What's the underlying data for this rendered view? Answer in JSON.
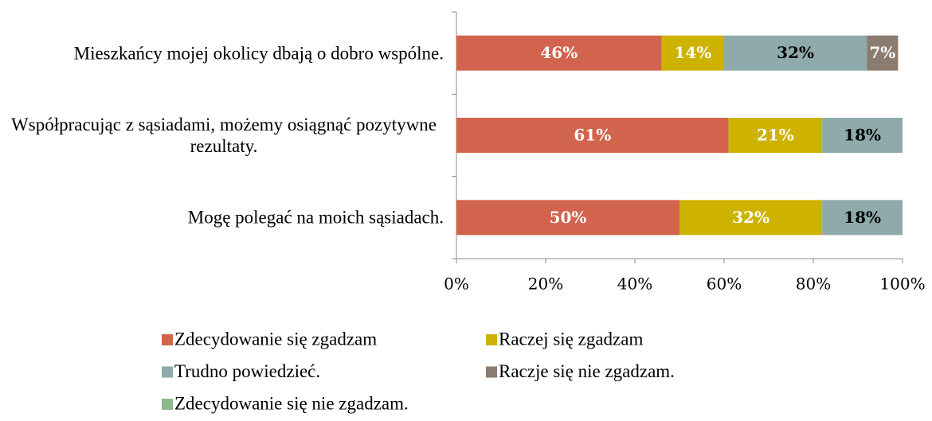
{
  "chart_data": {
    "type": "stacked-bar-horizontal",
    "categories": [
      "Mieszkańcy mojej okolicy dbają o dobro wspólne.",
      "Współpracując z sąsiadami, możemy osiągnąć pozytywne rezultaty.",
      "Mogę polegać na moich sąsiadach."
    ],
    "series": [
      {
        "name": "Zdecydowanie się zgadzam",
        "color": "#d2634c",
        "label_color": "#ffffff",
        "values": [
          46,
          61,
          50
        ],
        "value_labels": [
          "46%",
          "61%",
          "50%"
        ]
      },
      {
        "name": "Raczej się zgadzam",
        "color": "#cdb300",
        "label_color": "#ffffff",
        "values": [
          14,
          21,
          32
        ],
        "value_labels": [
          "14%",
          "21%",
          "32%"
        ]
      },
      {
        "name": "Trudno powiedzieć.",
        "color": "#8eaaaa",
        "label_color": "#000000",
        "values": [
          32,
          18,
          18
        ],
        "value_labels": [
          "32%",
          "18%",
          "18%"
        ]
      },
      {
        "name": "Raczje się nie zgadzam.",
        "color": "#8c7b6f",
        "label_color": "#ffffff",
        "values": [
          7,
          0,
          0
        ],
        "value_labels": [
          "7%",
          null,
          null
        ]
      },
      {
        "name": "Zdecydowanie się nie zgadzam.",
        "color": "#8fb88b",
        "label_color": "#ffffff",
        "values": [
          0,
          0,
          0
        ],
        "value_labels": [
          null,
          null,
          null
        ]
      }
    ],
    "xlim": [
      0,
      100
    ],
    "xticks": [
      {
        "value": 0,
        "label": "0%"
      },
      {
        "value": 20,
        "label": "20%"
      },
      {
        "value": 40,
        "label": "40%"
      },
      {
        "value": 60,
        "label": "60%"
      },
      {
        "value": 80,
        "label": "80%"
      },
      {
        "value": 100,
        "label": "100%"
      }
    ],
    "legend": "bottom"
  }
}
